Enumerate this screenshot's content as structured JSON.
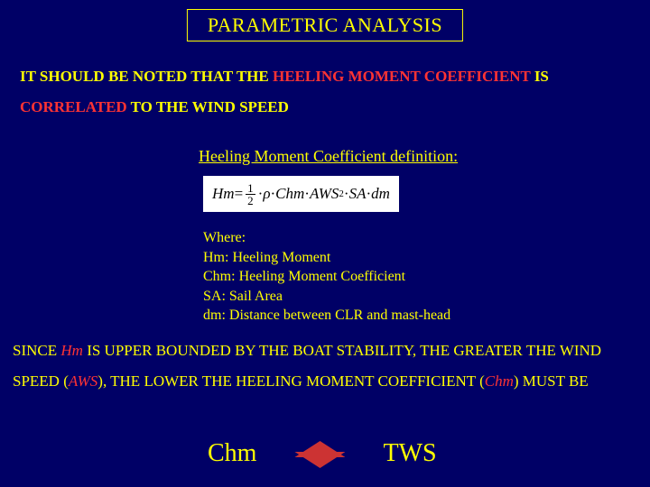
{
  "colors": {
    "background": "#000066",
    "text": "#ffff00",
    "highlight": "#ff3333",
    "formula_bg": "#ffffff",
    "formula_text": "#000000",
    "diamond": "#cc3333"
  },
  "title": "PARAMETRIC ANALYSIS",
  "para1_pre": "IT SHOULD BE NOTED THAT THE ",
  "para1_hl1": "HEELING MOMENT COEFFICIENT",
  "para1_mid": " IS ",
  "para1_hl2": "CORRELATED",
  "para1_post": " TO THE WIND SPEED",
  "subhead": "Heeling Moment Coefficient definition:",
  "formula": {
    "lhs": "Hm",
    "eq": " = ",
    "frac_num": "1",
    "frac_den": "2",
    "dot1": " · ",
    "rho": "ρ",
    "dot2": " · ",
    "chm": "Chm",
    "dot3": " · ",
    "aws": "AWS",
    "exp": "2",
    "dot4": " · ",
    "sa": "SA",
    "dot5": " · ",
    "dm": "dm"
  },
  "where": {
    "l0": "Where:",
    "l1": "Hm: Heeling Moment",
    "l2": "Chm: Heeling Moment Coefficient",
    "l3": "SA: Sail Area",
    "l4": "dm: Distance between CLR and mast-head"
  },
  "para2": {
    "s1": "SINCE ",
    "hm": "Hm",
    "s2": " IS UPPER BOUNDED BY THE BOAT STABILITY, THE GREATER THE WIND SPEED (",
    "aws": "AWS",
    "s3": "), THE LOWER THE HEELING MOMENT COEFFICIENT (",
    "chm": "Chm",
    "s4": ") MUST BE"
  },
  "bottom": {
    "left": "Chm",
    "right": "TWS"
  }
}
